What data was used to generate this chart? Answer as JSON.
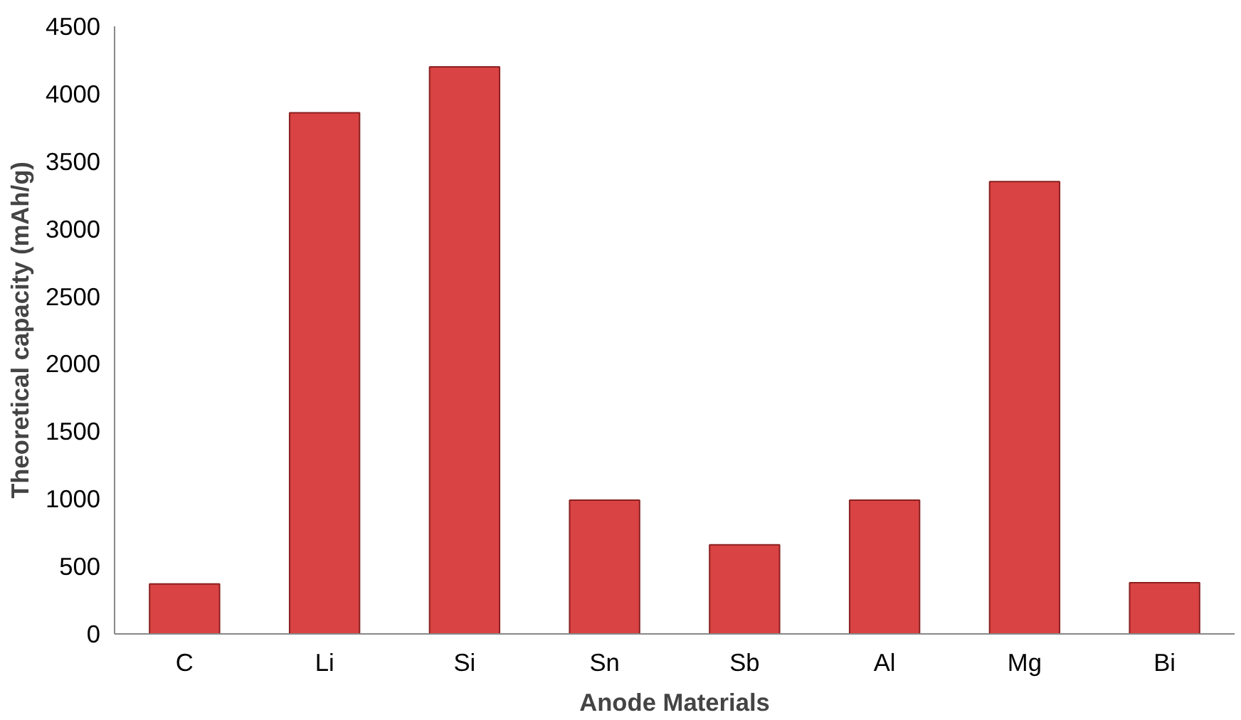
{
  "chart_data": {
    "type": "bar",
    "xlabel": "Anode Materials",
    "ylabel": "Theoretical capacity (mAh/g)",
    "categories": [
      "C",
      "Li",
      "Si",
      "Sn",
      "Sb",
      "Al",
      "Mg",
      "Bi"
    ],
    "values": [
      370,
      3860,
      4200,
      990,
      660,
      990,
      3350,
      380
    ],
    "color": "#d94343",
    "ylim": [
      0,
      4500
    ],
    "yticks": [
      0,
      500,
      1000,
      1500,
      2000,
      2500,
      3000,
      3500,
      4000,
      4500
    ],
    "grid": false
  }
}
